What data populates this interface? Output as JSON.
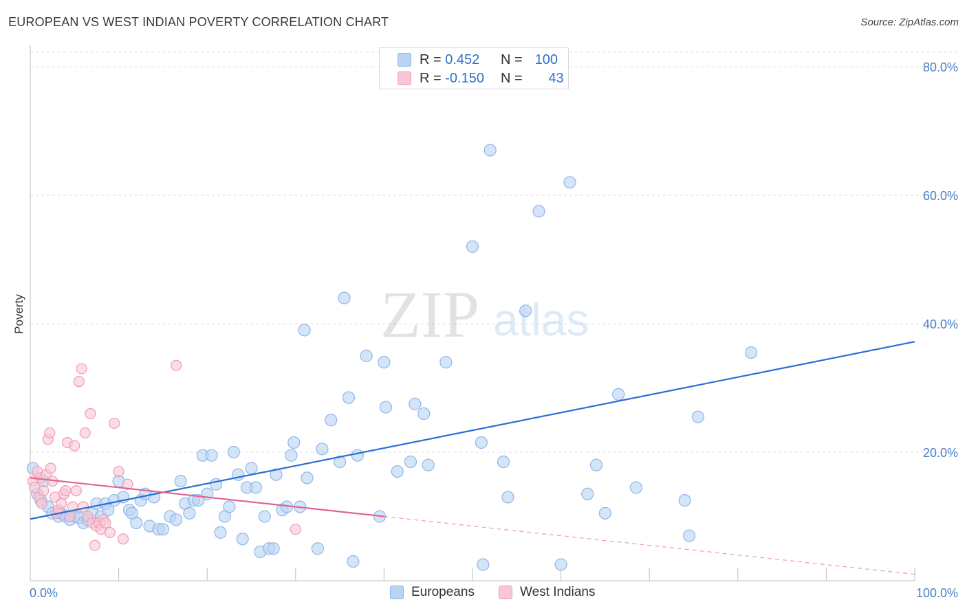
{
  "title": "EUROPEAN VS WEST INDIAN POVERTY CORRELATION CHART",
  "source": "Source: ZipAtlas.com",
  "watermark": {
    "zip": "ZIP",
    "atlas": "atlas"
  },
  "legend_top": [
    {
      "r_label": "R =",
      "r_value": "0.452",
      "n_label": "N =",
      "n_value": "100"
    },
    {
      "r_label": "R =",
      "r_value": "-0.150",
      "n_label": "N =",
      "n_value": "43"
    }
  ],
  "legend_bottom": [
    "Europeans",
    "West Indians"
  ],
  "colors": {
    "blue_fill": "#b9d3f3",
    "blue_stroke": "#8fb6e8",
    "blue_line": "#2a6fd0",
    "pink_fill": "#f8c6d5",
    "pink_stroke": "#ef9cb6",
    "pink_line": "#e06492",
    "axis_text": "#4a7ec4",
    "grid": "#dcdcdc"
  },
  "chart_data": {
    "type": "scatter",
    "title": "EUROPEAN VS WEST INDIAN POVERTY CORRELATION CHART",
    "ylabel": "Poverty",
    "xlabel": "",
    "xlim": [
      0,
      100
    ],
    "ylim": [
      0,
      80
    ],
    "y_ticks": [
      {
        "v": 20,
        "label": "20.0%"
      },
      {
        "v": 40,
        "label": "40.0%"
      },
      {
        "v": 60,
        "label": "60.0%"
      },
      {
        "v": 80,
        "label": "80.0%"
      }
    ],
    "x_tick_labels": {
      "min": "0.0%",
      "max": "100.0%"
    },
    "grid": true,
    "legend_position": "top-center",
    "series": [
      {
        "name": "Europeans",
        "r": 0.452,
        "n": 100,
        "trend": {
          "x0": 0,
          "y0": 9.6,
          "x1": 100,
          "y1": 37.2,
          "solid_to": 100
        },
        "points": [
          [
            0.3,
            17.5
          ],
          [
            0.8,
            13.5
          ],
          [
            1.2,
            12.5
          ],
          [
            1.5,
            15.5
          ],
          [
            2.0,
            11.5
          ],
          [
            2.5,
            10.5
          ],
          [
            3.2,
            10.0
          ],
          [
            3.5,
            10.5
          ],
          [
            4.0,
            10.0
          ],
          [
            4.5,
            9.5
          ],
          [
            5.0,
            10.0
          ],
          [
            5.5,
            9.8
          ],
          [
            6.0,
            9.0
          ],
          [
            6.5,
            9.5
          ],
          [
            7.0,
            10.5
          ],
          [
            7.5,
            12.0
          ],
          [
            8.0,
            10.0
          ],
          [
            8.5,
            12.0
          ],
          [
            8.8,
            11.0
          ],
          [
            9.5,
            12.5
          ],
          [
            10.0,
            15.5
          ],
          [
            10.5,
            13.0
          ],
          [
            11.2,
            11.0
          ],
          [
            11.5,
            10.5
          ],
          [
            12.0,
            9.0
          ],
          [
            12.5,
            12.5
          ],
          [
            13.0,
            13.5
          ],
          [
            13.5,
            8.5
          ],
          [
            14.0,
            13.0
          ],
          [
            14.5,
            8.0
          ],
          [
            15.0,
            8.0
          ],
          [
            15.8,
            10.0
          ],
          [
            16.5,
            9.5
          ],
          [
            17.0,
            15.5
          ],
          [
            17.5,
            12.0
          ],
          [
            18.0,
            10.5
          ],
          [
            18.5,
            12.5
          ],
          [
            19.0,
            12.5
          ],
          [
            19.5,
            19.5
          ],
          [
            20.0,
            13.5
          ],
          [
            20.5,
            19.5
          ],
          [
            21.0,
            15.0
          ],
          [
            21.5,
            7.5
          ],
          [
            22.0,
            10.0
          ],
          [
            22.5,
            11.5
          ],
          [
            23.0,
            20.0
          ],
          [
            23.5,
            16.5
          ],
          [
            24.0,
            6.5
          ],
          [
            24.5,
            14.5
          ],
          [
            25.0,
            17.5
          ],
          [
            25.5,
            14.5
          ],
          [
            26.0,
            4.5
          ],
          [
            26.5,
            10.0
          ],
          [
            27.0,
            5.0
          ],
          [
            27.5,
            5.0
          ],
          [
            27.8,
            16.5
          ],
          [
            28.5,
            11.0
          ],
          [
            29.0,
            11.5
          ],
          [
            29.5,
            19.5
          ],
          [
            29.8,
            21.5
          ],
          [
            30.5,
            11.5
          ],
          [
            31.0,
            39.0
          ],
          [
            31.3,
            16.0
          ],
          [
            32.5,
            5.0
          ],
          [
            33.0,
            20.5
          ],
          [
            34.0,
            25.0
          ],
          [
            35.0,
            18.5
          ],
          [
            35.5,
            44.0
          ],
          [
            36.0,
            28.5
          ],
          [
            36.5,
            3.0
          ],
          [
            37.0,
            19.5
          ],
          [
            38.0,
            35.0
          ],
          [
            39.5,
            10.0
          ],
          [
            40.0,
            34.0
          ],
          [
            40.2,
            27.0
          ],
          [
            41.5,
            17.0
          ],
          [
            43.0,
            18.5
          ],
          [
            43.5,
            27.5
          ],
          [
            44.5,
            26.0
          ],
          [
            45.0,
            18.0
          ],
          [
            47.0,
            34.0
          ],
          [
            50.0,
            52.0
          ],
          [
            51.0,
            21.5
          ],
          [
            51.2,
            2.5
          ],
          [
            52.0,
            67.0
          ],
          [
            53.5,
            18.5
          ],
          [
            54.0,
            13.0
          ],
          [
            56.0,
            42.0
          ],
          [
            57.5,
            57.5
          ],
          [
            60.0,
            2.5
          ],
          [
            61.0,
            62.0
          ],
          [
            63.0,
            13.5
          ],
          [
            64.0,
            18.0
          ],
          [
            65.0,
            10.5
          ],
          [
            66.5,
            29.0
          ],
          [
            68.5,
            14.5
          ],
          [
            74.0,
            12.5
          ],
          [
            74.5,
            7.0
          ],
          [
            75.5,
            25.5
          ],
          [
            81.5,
            35.5
          ]
        ]
      },
      {
        "name": "West Indians",
        "r": -0.15,
        "n": 43,
        "trend": {
          "x0": 0,
          "y0": 16.0,
          "x1": 100,
          "y1": 1.0,
          "solid_to": 40
        },
        "points": [
          [
            0.3,
            15.5
          ],
          [
            0.5,
            14.5
          ],
          [
            0.8,
            17.0
          ],
          [
            1.0,
            13.0
          ],
          [
            1.2,
            16.0
          ],
          [
            1.3,
            12.0
          ],
          [
            1.5,
            14.0
          ],
          [
            1.8,
            16.5
          ],
          [
            2.0,
            22.0
          ],
          [
            2.2,
            23.0
          ],
          [
            2.3,
            17.5
          ],
          [
            2.5,
            15.5
          ],
          [
            2.8,
            13.0
          ],
          [
            3.0,
            10.5
          ],
          [
            3.2,
            11.0
          ],
          [
            3.5,
            12.0
          ],
          [
            3.8,
            13.5
          ],
          [
            4.0,
            14.0
          ],
          [
            4.2,
            21.5
          ],
          [
            4.5,
            10.0
          ],
          [
            4.8,
            11.5
          ],
          [
            5.0,
            21.0
          ],
          [
            5.2,
            14.0
          ],
          [
            5.5,
            31.0
          ],
          [
            5.8,
            33.0
          ],
          [
            6.0,
            11.5
          ],
          [
            6.2,
            23.0
          ],
          [
            6.5,
            10.0
          ],
          [
            6.8,
            26.0
          ],
          [
            7.0,
            9.0
          ],
          [
            7.3,
            5.5
          ],
          [
            7.5,
            8.5
          ],
          [
            7.8,
            9.0
          ],
          [
            8.0,
            8.0
          ],
          [
            8.3,
            9.5
          ],
          [
            8.5,
            9.0
          ],
          [
            9.0,
            7.5
          ],
          [
            9.5,
            24.5
          ],
          [
            10.0,
            17.0
          ],
          [
            10.5,
            6.5
          ],
          [
            11.0,
            15.0
          ],
          [
            16.5,
            33.5
          ],
          [
            30.0,
            8.0
          ]
        ]
      }
    ]
  }
}
